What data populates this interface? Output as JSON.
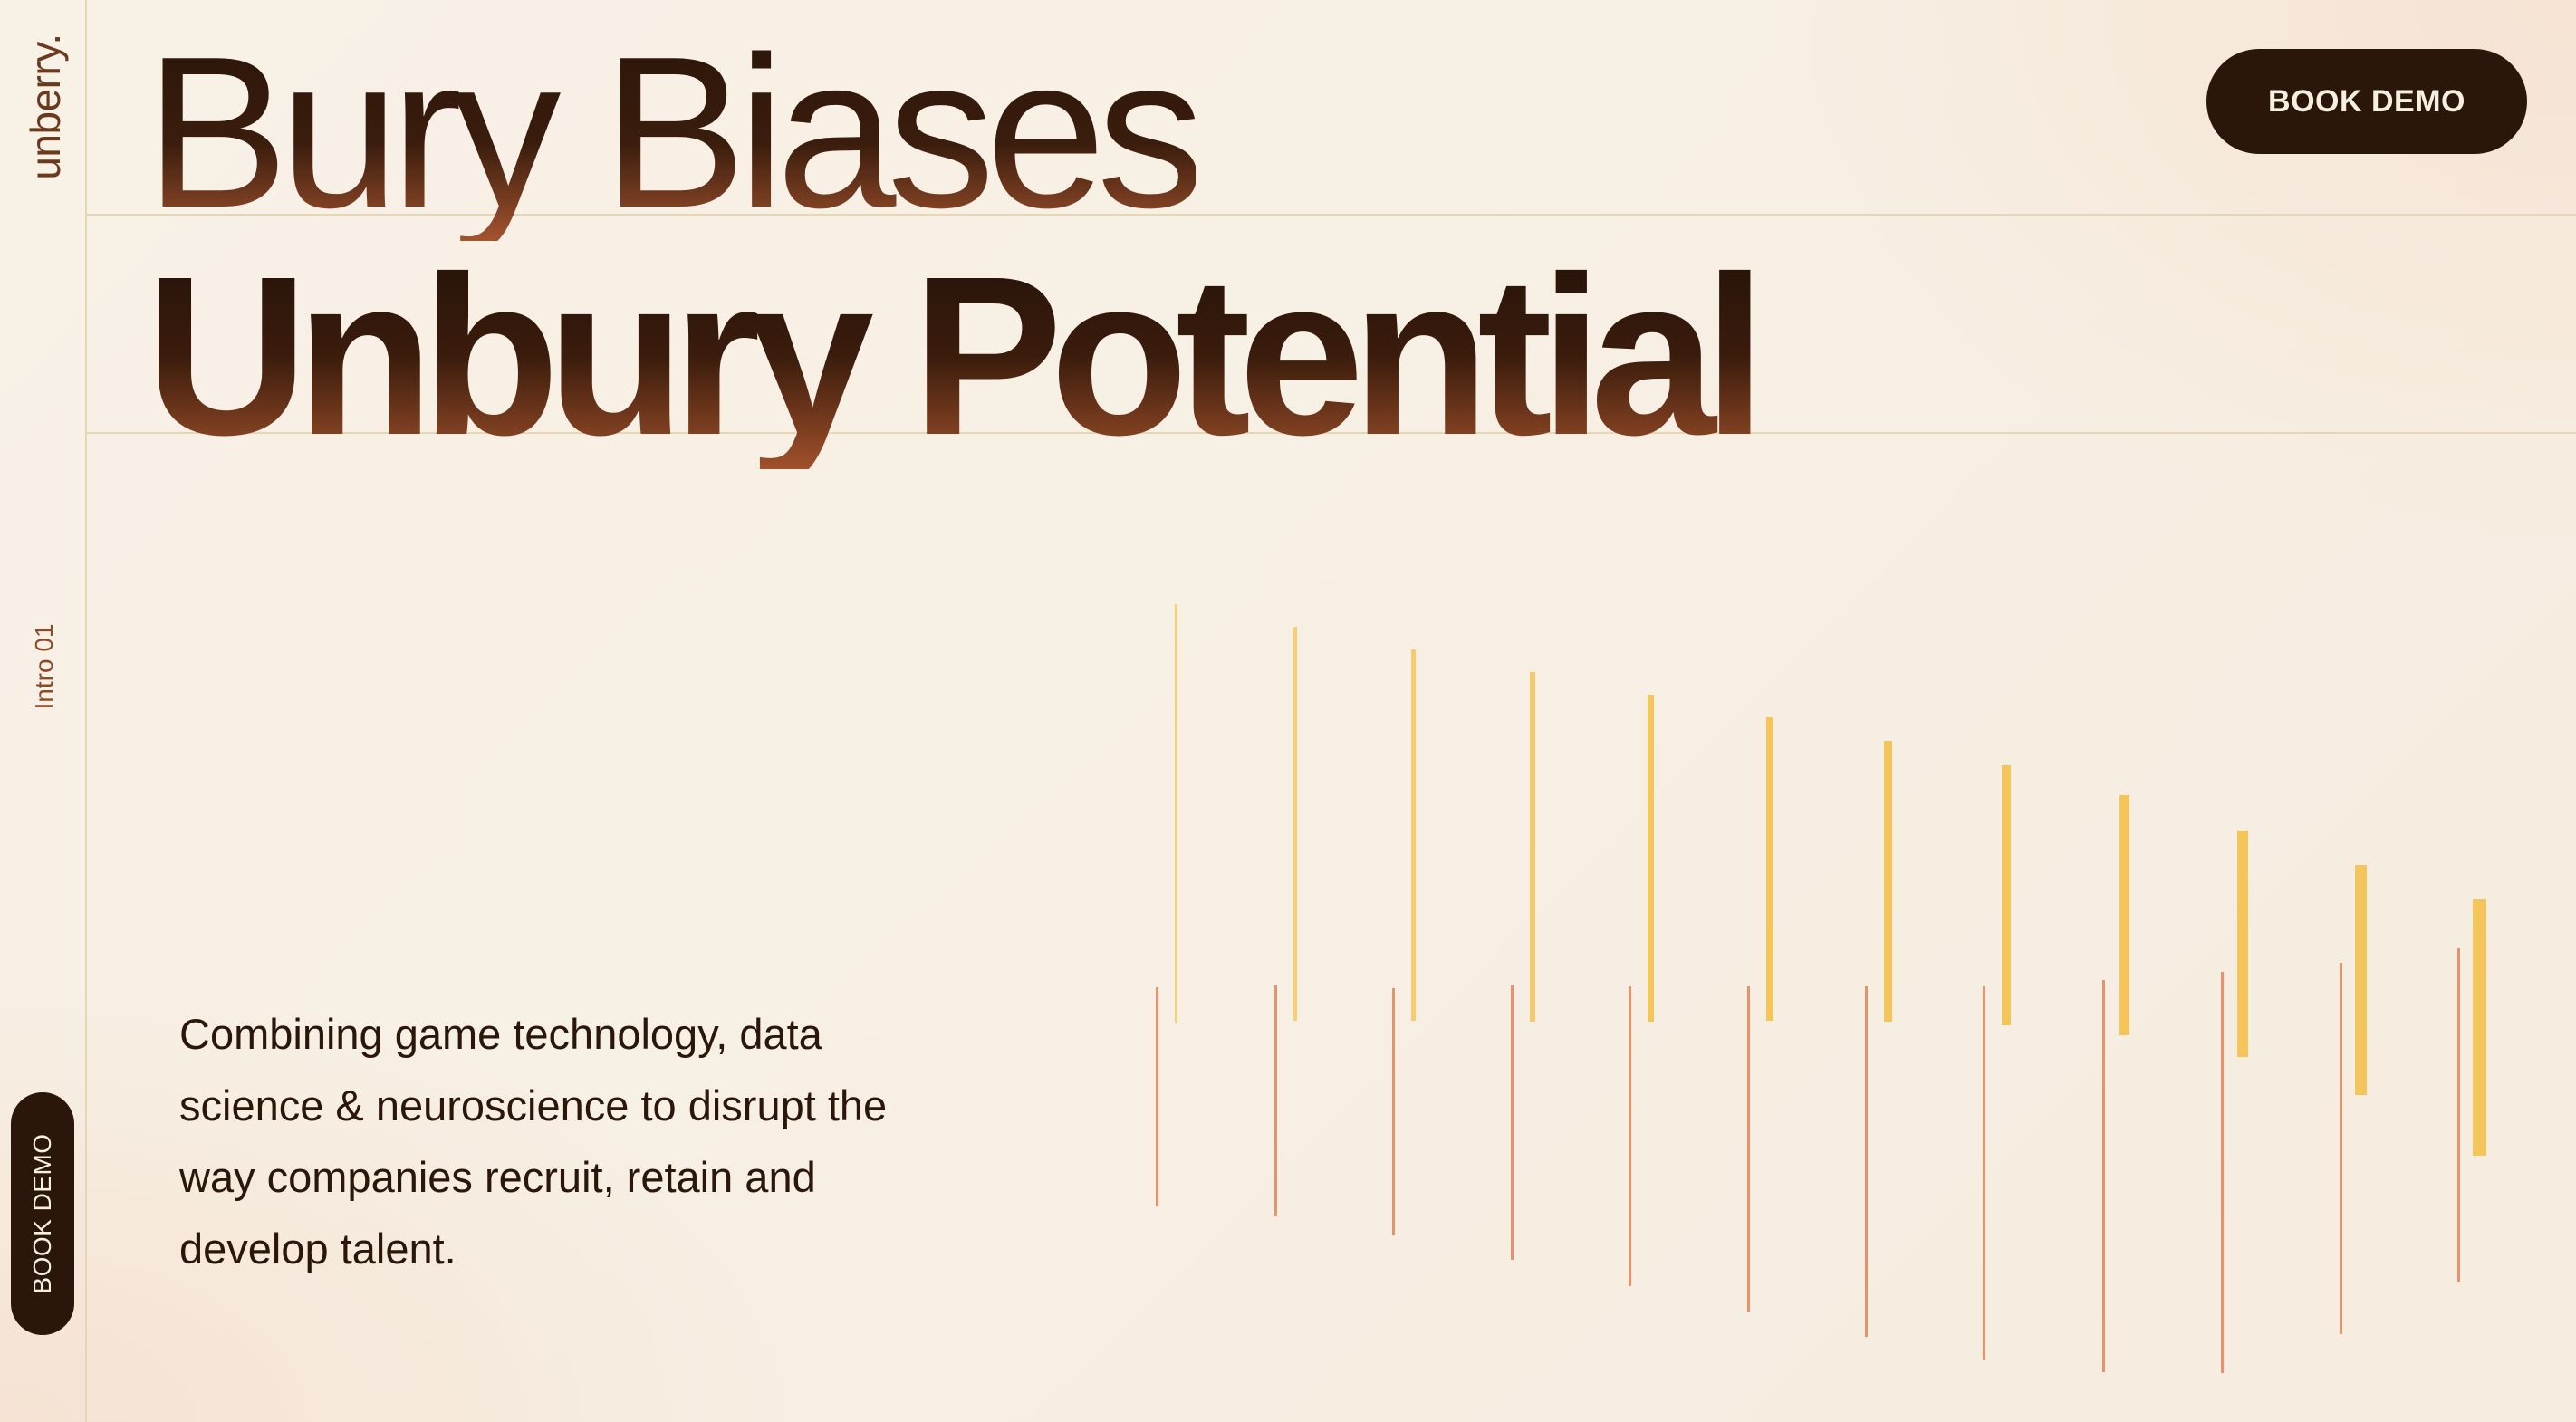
{
  "brand": {
    "logo_text": "unberry."
  },
  "sidebar": {
    "section_label": "Intro 01",
    "cta_label": "BOOK DEMO"
  },
  "header": {
    "cta_label": "BOOK DEMO"
  },
  "hero": {
    "headline_line1": "Bury Biases",
    "headline_line2": "Unbury Potential",
    "description": "Combining game technology, data science & neuroscience to disrupt the way companies recruit, retain and develop talent."
  },
  "colors": {
    "background": "#f7efe4",
    "primary_dark": "#2a160b",
    "accent_yellow": "#f4c55a",
    "accent_orange": "#e9916a",
    "guide_line": "#e6d7b3"
  }
}
